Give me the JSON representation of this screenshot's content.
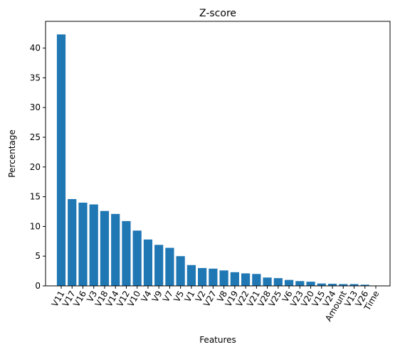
{
  "chart_data": {
    "type": "bar",
    "title": "Z-score",
    "xlabel": "Features",
    "ylabel": "Percentage",
    "ylim": [
      0,
      44.5
    ],
    "yticks": [
      0,
      5,
      10,
      15,
      20,
      25,
      30,
      35,
      40
    ],
    "grid": false,
    "bar_color": "#1f77b4",
    "categories": [
      "V11",
      "V17",
      "V16",
      "V3",
      "V18",
      "V14",
      "V12",
      "V10",
      "V4",
      "V9",
      "V7",
      "V5",
      "V1",
      "V2",
      "V27",
      "V8",
      "V19",
      "V22",
      "V21",
      "V28",
      "V25",
      "V6",
      "V23",
      "V20",
      "V15",
      "V24",
      "Amount",
      "V13",
      "V26",
      "Time"
    ],
    "values": [
      42.3,
      14.6,
      14.0,
      13.7,
      12.6,
      12.1,
      10.9,
      9.3,
      7.8,
      6.9,
      6.4,
      5.0,
      3.5,
      3.0,
      2.9,
      2.6,
      2.3,
      2.1,
      2.0,
      1.4,
      1.3,
      1.0,
      0.8,
      0.7,
      0.4,
      0.35,
      0.3,
      0.3,
      0.2,
      0.05
    ]
  }
}
